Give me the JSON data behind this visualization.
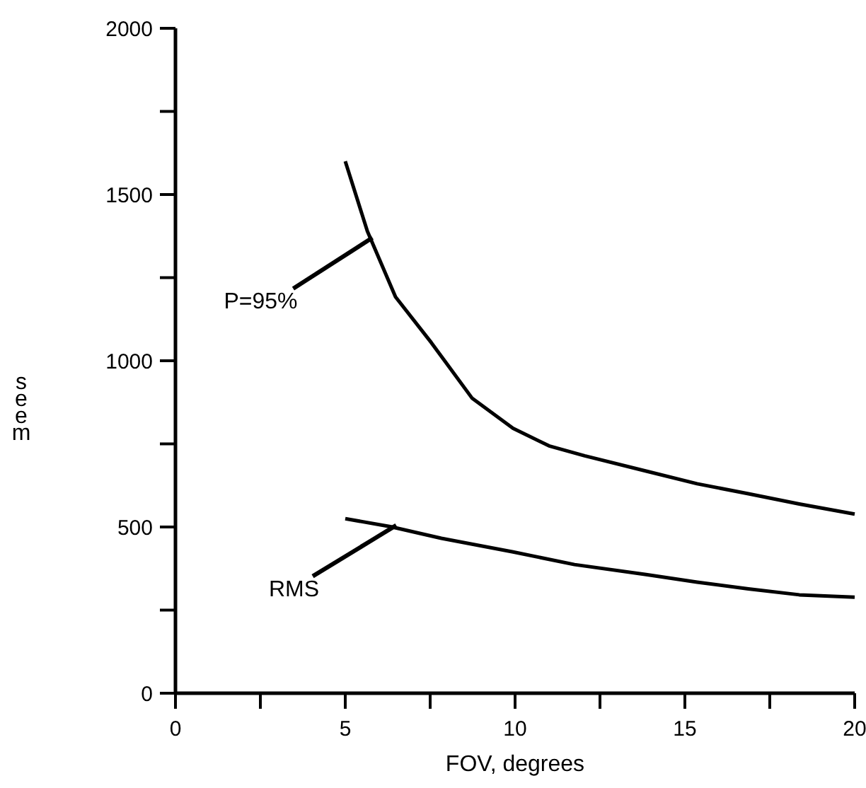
{
  "chart_data": {
    "type": "line",
    "xlabel": "FOV, degrees",
    "ylabel": "seem",
    "xlim": [
      0,
      20
    ],
    "xticks": [
      0,
      {
        "value": 2.5,
        "label": null
      },
      5,
      {
        "value": 7.5,
        "label": null
      },
      10,
      {
        "value": 12.5,
        "label": null
      },
      15,
      {
        "value": 17.5,
        "label": null
      },
      20
    ],
    "ylim": [
      0,
      2000
    ],
    "yticks": [
      0,
      {
        "value": 250,
        "label": null
      },
      500,
      {
        "value": 750,
        "label": null
      },
      1000,
      {
        "value": 1250,
        "label": null
      },
      1500,
      {
        "value": 1750,
        "label": null
      },
      2000
    ],
    "grid": false,
    "marker": "none",
    "line_style": "solid",
    "series": [
      {
        "color": "#000000",
        "x": [
          5,
          5.65,
          6.48,
          7.53,
          8.73,
          9.94,
          11,
          12.05,
          13.86,
          15.36,
          16.87,
          18.37,
          20
        ],
        "values": [
          1600,
          1390,
          1192,
          1055,
          888,
          797,
          744,
          714,
          668,
          630,
          600,
          569,
          539
        ]
      },
      {
        "color": "#000000",
        "x": [
          5,
          6.33,
          7.83,
          9.94,
          11.75,
          13.86,
          15.36,
          16.87,
          18.37,
          20
        ],
        "values": [
          525,
          501,
          466,
          425,
          387,
          357,
          334,
          314,
          296,
          289
        ]
      }
    ],
    "annotations": [
      {
        "text": "P=95%",
        "x": 5.8,
        "y": 1370
      },
      {
        "text": "RMS",
        "x": 6.5,
        "y": 505
      }
    ]
  }
}
